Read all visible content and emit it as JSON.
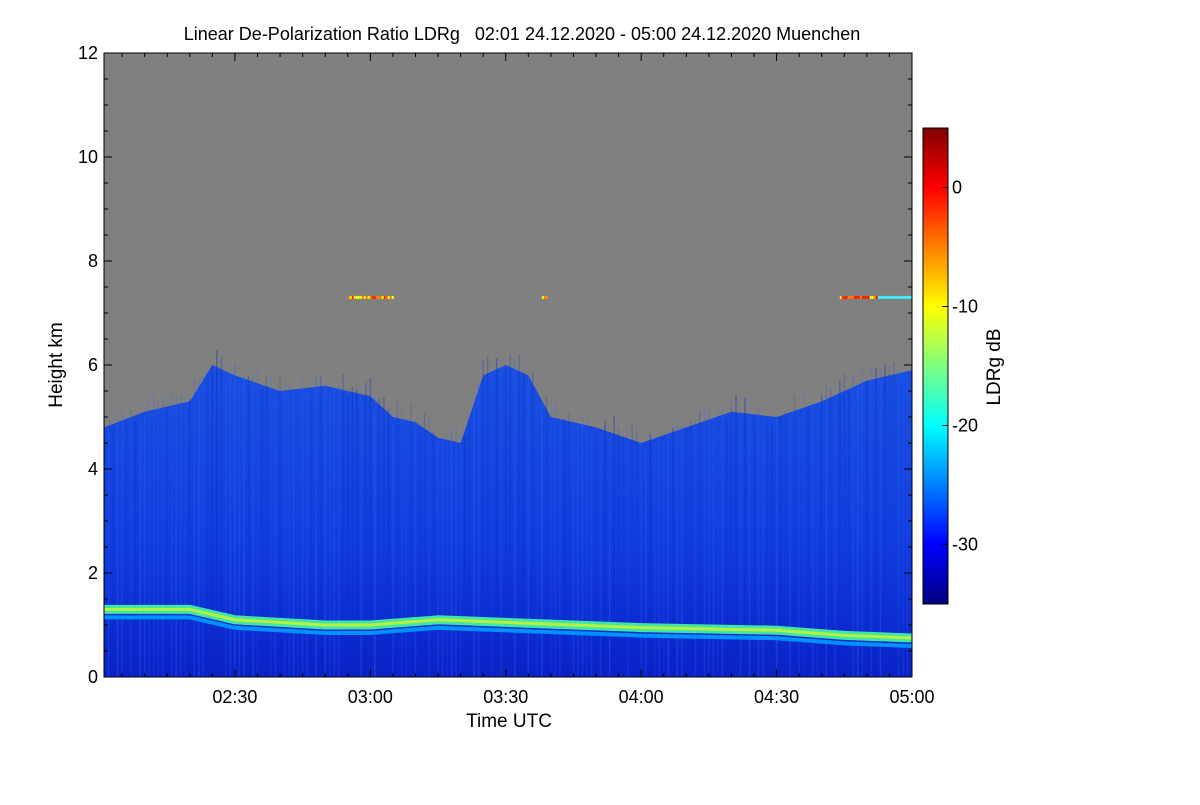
{
  "chart_data": {
    "type": "heatmap",
    "title": "Linear De-Polarization Ratio LDRg   02:01 24.12.2020 - 05:00 24.12.2020 Muenchen",
    "xlabel": "Time UTC",
    "ylabel": "Height km",
    "x_range": [
      "02:01",
      "05:00"
    ],
    "x_ticks": [
      "02:30",
      "03:00",
      "03:30",
      "04:00",
      "04:30",
      "05:00"
    ],
    "ylim": [
      0,
      12
    ],
    "y_ticks": [
      0,
      2,
      4,
      6,
      8,
      10,
      12
    ],
    "colorbar": {
      "label": "LDRg dB",
      "range": [
        -35,
        5
      ],
      "ticks": [
        0,
        -10,
        -20,
        -30
      ]
    },
    "no_signal_color": "#808080",
    "layers": [
      {
        "kind": "signal top height (km)",
        "points": [
          [
            "02:01",
            4.8
          ],
          [
            "02:10",
            5.1
          ],
          [
            "02:20",
            5.3
          ],
          [
            "02:25",
            6.0
          ],
          [
            "02:30",
            5.8
          ],
          [
            "02:40",
            5.5
          ],
          [
            "02:50",
            5.6
          ],
          [
            "03:00",
            5.4
          ],
          [
            "03:05",
            5.0
          ],
          [
            "03:10",
            4.9
          ],
          [
            "03:15",
            4.6
          ],
          [
            "03:20",
            4.5
          ],
          [
            "03:25",
            5.8
          ],
          [
            "03:30",
            6.0
          ],
          [
            "03:35",
            5.8
          ],
          [
            "03:40",
            5.0
          ],
          [
            "03:45",
            4.9
          ],
          [
            "03:50",
            4.8
          ],
          [
            "04:00",
            4.5
          ],
          [
            "04:10",
            4.8
          ],
          [
            "04:20",
            5.1
          ],
          [
            "04:30",
            5.0
          ],
          [
            "04:40",
            5.3
          ],
          [
            "04:50",
            5.7
          ],
          [
            "05:00",
            5.9
          ]
        ]
      },
      {
        "kind": "boundary layer top height (km)",
        "points": [
          [
            "02:01",
            1.3
          ],
          [
            "02:20",
            1.3
          ],
          [
            "02:30",
            1.1
          ],
          [
            "02:50",
            1.0
          ],
          [
            "03:00",
            1.0
          ],
          [
            "03:15",
            1.1
          ],
          [
            "03:30",
            1.05
          ],
          [
            "03:45",
            1.0
          ],
          [
            "04:00",
            0.95
          ],
          [
            "04:30",
            0.9
          ],
          [
            "04:45",
            0.8
          ],
          [
            "05:00",
            0.75
          ]
        ]
      },
      {
        "kind": "thin cirrus layer (km)",
        "segments": [
          {
            "from": "02:55",
            "to": "03:05",
            "height": 7.3
          },
          {
            "from": "03:38",
            "to": "03:39",
            "height": 7.3
          },
          {
            "from": "04:44",
            "to": "05:00",
            "height": 7.3
          }
        ]
      }
    ]
  }
}
